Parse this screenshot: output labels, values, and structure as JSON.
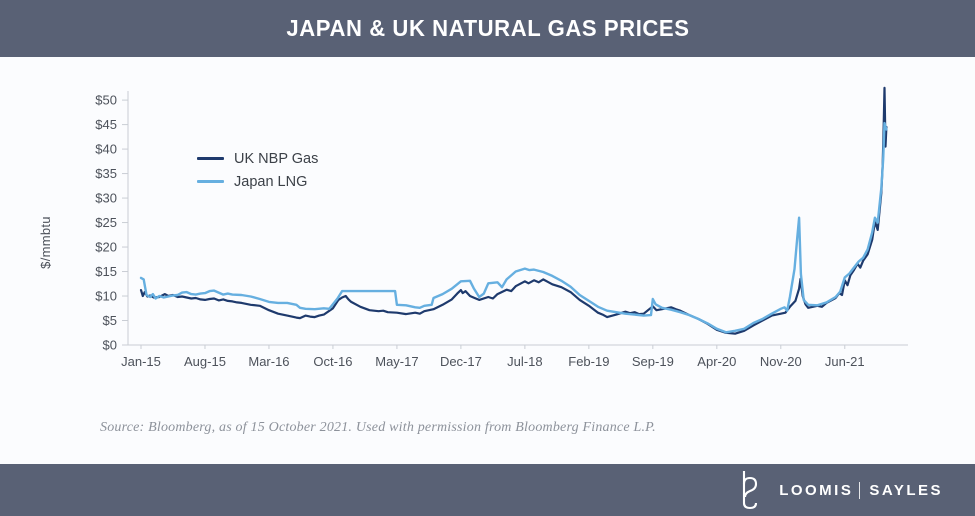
{
  "header": {
    "title": "JAPAN & UK NATURAL GAS PRICES"
  },
  "y_axis_label": "$/mmbtu",
  "source": {
    "text": "Source: Bloomberg, as of 15 October 2021. Used with permission from Bloomberg Finance L.P."
  },
  "footer": {
    "brand_left": "LOOMIS",
    "brand_right": "SAYLES",
    "logo": "loomis-sayles-ls-monogram"
  },
  "colors": {
    "bar_background": "#596175",
    "chart_background": "#fbfcfe",
    "axis_line": "#c9cdd4",
    "tick_text": "#4d525b",
    "legend_text": "#3c4148",
    "source_text": "#8d929b",
    "title_text": "#ffffff"
  },
  "chart_data": {
    "type": "line",
    "title": "JAPAN & UK NATURAL GAS PRICES",
    "xlabel": "",
    "ylabel": "$/mmbtu",
    "ylim": [
      0,
      52.5
    ],
    "grid": false,
    "legend_position": "inside-upper-left",
    "x_unit": "months since Jan-2015 (data through mid-Oct-2021)",
    "y_ticks": [
      {
        "v": 0,
        "label": "$0"
      },
      {
        "v": 5,
        "label": "$5"
      },
      {
        "v": 10,
        "label": "$10"
      },
      {
        "v": 15,
        "label": "$15"
      },
      {
        "v": 20,
        "label": "$20"
      },
      {
        "v": 25,
        "label": "$25"
      },
      {
        "v": 30,
        "label": "$30"
      },
      {
        "v": 35,
        "label": "$35"
      },
      {
        "v": 40,
        "label": "$40"
      },
      {
        "v": 45,
        "label": "$45"
      },
      {
        "v": 50,
        "label": "$50"
      }
    ],
    "x_ticks": [
      {
        "m": 0,
        "label": "Jan-15"
      },
      {
        "m": 7,
        "label": "Aug-15"
      },
      {
        "m": 14,
        "label": "Mar-16"
      },
      {
        "m": 21,
        "label": "Oct-16"
      },
      {
        "m": 28,
        "label": "May-17"
      },
      {
        "m": 35,
        "label": "Dec-17"
      },
      {
        "m": 42,
        "label": "Jul-18"
      },
      {
        "m": 49,
        "label": "Feb-19"
      },
      {
        "m": 56,
        "label": "Sep-19"
      },
      {
        "m": 63,
        "label": "Apr-20"
      },
      {
        "m": 70,
        "label": "Nov-20"
      },
      {
        "m": 77,
        "label": "Jun-21"
      }
    ],
    "series": [
      {
        "name": "UK NBP Gas",
        "color": "#1e3a6d",
        "points": [
          [
            0,
            11.2
          ],
          [
            0.2,
            10.0
          ],
          [
            0.4,
            10.8
          ],
          [
            0.7,
            9.9
          ],
          [
            1,
            10.1
          ],
          [
            1.4,
            9.7
          ],
          [
            2,
            9.8
          ],
          [
            2.6,
            10.4
          ],
          [
            3,
            10.0
          ],
          [
            3.5,
            10.2
          ],
          [
            4,
            9.8
          ],
          [
            4.5,
            9.9
          ],
          [
            5,
            9.7
          ],
          [
            5.5,
            9.5
          ],
          [
            6,
            9.6
          ],
          [
            6.5,
            9.3
          ],
          [
            7,
            9.2
          ],
          [
            7.5,
            9.4
          ],
          [
            8,
            9.5
          ],
          [
            8.5,
            9.1
          ],
          [
            9,
            9.3
          ],
          [
            9.5,
            9.0
          ],
          [
            10,
            8.9
          ],
          [
            10.5,
            8.7
          ],
          [
            11,
            8.6
          ],
          [
            12,
            8.2
          ],
          [
            13,
            8.0
          ],
          [
            14,
            7.1
          ],
          [
            15,
            6.4
          ],
          [
            16,
            6.0
          ],
          [
            16.5,
            5.8
          ],
          [
            17,
            5.6
          ],
          [
            17.4,
            5.5
          ],
          [
            18,
            6.0
          ],
          [
            18.5,
            5.8
          ],
          [
            19,
            5.7
          ],
          [
            19.5,
            6.0
          ],
          [
            20,
            6.2
          ],
          [
            21,
            7.5
          ],
          [
            21.6,
            9.2
          ],
          [
            22,
            9.7
          ],
          [
            22.4,
            10.0
          ],
          [
            22.7,
            9.3
          ],
          [
            23,
            8.8
          ],
          [
            24,
            7.8
          ],
          [
            25,
            7.1
          ],
          [
            26,
            6.9
          ],
          [
            26.5,
            7.0
          ],
          [
            27,
            6.7
          ],
          [
            28,
            6.6
          ],
          [
            29,
            6.3
          ],
          [
            30,
            6.6
          ],
          [
            30.5,
            6.4
          ],
          [
            31,
            6.9
          ],
          [
            32,
            7.3
          ],
          [
            33,
            8.2
          ],
          [
            34,
            9.3
          ],
          [
            34.6,
            10.5
          ],
          [
            35,
            11.2
          ],
          [
            35.2,
            10.6
          ],
          [
            35.5,
            11.0
          ],
          [
            36,
            10.0
          ],
          [
            36.5,
            9.6
          ],
          [
            37,
            9.2
          ],
          [
            38,
            9.8
          ],
          [
            38.5,
            9.5
          ],
          [
            39,
            10.4
          ],
          [
            40,
            11.3
          ],
          [
            40.5,
            11.0
          ],
          [
            41,
            12.0
          ],
          [
            42,
            13.0
          ],
          [
            42.4,
            12.6
          ],
          [
            43,
            13.2
          ],
          [
            43.5,
            12.8
          ],
          [
            44,
            13.4
          ],
          [
            44.5,
            12.9
          ],
          [
            45,
            12.4
          ],
          [
            46,
            11.8
          ],
          [
            47,
            10.8
          ],
          [
            48,
            9.2
          ],
          [
            49,
            8.0
          ],
          [
            50,
            6.6
          ],
          [
            50.5,
            6.2
          ],
          [
            51,
            5.7
          ],
          [
            52,
            6.2
          ],
          [
            53,
            6.8
          ],
          [
            53.5,
            6.5
          ],
          [
            54,
            6.7
          ],
          [
            54.5,
            6.3
          ],
          [
            55,
            6.4
          ],
          [
            56,
            7.9
          ],
          [
            56.4,
            7.1
          ],
          [
            57,
            7.3
          ],
          [
            58,
            7.7
          ],
          [
            58.5,
            7.3
          ],
          [
            59,
            7.0
          ],
          [
            60,
            6.1
          ],
          [
            61,
            5.3
          ],
          [
            62,
            4.3
          ],
          [
            63,
            3.1
          ],
          [
            64,
            2.5
          ],
          [
            65,
            2.3
          ],
          [
            66,
            2.9
          ],
          [
            67,
            4.0
          ],
          [
            68,
            5.0
          ],
          [
            69,
            6.0
          ],
          [
            70,
            6.4
          ],
          [
            70.5,
            6.6
          ],
          [
            71,
            7.8
          ],
          [
            71.6,
            9.0
          ],
          [
            72,
            11.5
          ],
          [
            72.15,
            13.5
          ],
          [
            72.4,
            10.0
          ],
          [
            72.7,
            8.3
          ],
          [
            73,
            7.6
          ],
          [
            74,
            8.0
          ],
          [
            74.5,
            7.8
          ],
          [
            75,
            8.6
          ],
          [
            76,
            9.6
          ],
          [
            76.4,
            10.6
          ],
          [
            76.7,
            10.2
          ],
          [
            77,
            13.2
          ],
          [
            77.3,
            12.2
          ],
          [
            77.6,
            14.2
          ],
          [
            78,
            15.3
          ],
          [
            78.4,
            16.6
          ],
          [
            78.7,
            15.8
          ],
          [
            79,
            17.2
          ],
          [
            79.5,
            18.5
          ],
          [
            80,
            21.5
          ],
          [
            80.3,
            25.2
          ],
          [
            80.6,
            23.5
          ],
          [
            81,
            31.0
          ],
          [
            81.15,
            37.0
          ],
          [
            81.25,
            44.0
          ],
          [
            81.35,
            52.5
          ],
          [
            81.45,
            40.5
          ],
          [
            81.55,
            44.5
          ]
        ]
      },
      {
        "name": "Japan LNG",
        "color": "#66afe0",
        "points": [
          [
            0,
            13.7
          ],
          [
            0.3,
            13.4
          ],
          [
            0.6,
            10.2
          ],
          [
            1,
            9.8
          ],
          [
            1.3,
            10.4
          ],
          [
            1.6,
            9.5
          ],
          [
            2,
            10.0
          ],
          [
            2.5,
            9.7
          ],
          [
            3,
            9.9
          ],
          [
            3.5,
            10.1
          ],
          [
            4,
            10.2
          ],
          [
            4.5,
            10.7
          ],
          [
            5,
            10.8
          ],
          [
            5.5,
            10.4
          ],
          [
            6,
            10.3
          ],
          [
            6.5,
            10.5
          ],
          [
            7,
            10.6
          ],
          [
            7.5,
            11.0
          ],
          [
            8,
            11.1
          ],
          [
            8.5,
            10.7
          ],
          [
            9,
            10.3
          ],
          [
            9.5,
            10.5
          ],
          [
            10,
            10.3
          ],
          [
            11,
            10.2
          ],
          [
            12,
            9.9
          ],
          [
            13,
            9.4
          ],
          [
            14,
            8.8
          ],
          [
            15,
            8.6
          ],
          [
            16,
            8.6
          ],
          [
            17,
            8.2
          ],
          [
            17.4,
            7.6
          ],
          [
            18,
            7.4
          ],
          [
            19,
            7.3
          ],
          [
            20,
            7.5
          ],
          [
            20.6,
            7.4
          ],
          [
            21,
            8.3
          ],
          [
            21.5,
            9.5
          ],
          [
            22,
            11.0
          ],
          [
            23,
            11.0
          ],
          [
            24,
            11.0
          ],
          [
            25,
            11.0
          ],
          [
            26,
            11.0
          ],
          [
            27,
            11.0
          ],
          [
            27.8,
            11.0
          ],
          [
            28,
            8.2
          ],
          [
            29,
            8.1
          ],
          [
            30,
            7.7
          ],
          [
            30.5,
            7.6
          ],
          [
            31,
            8.0
          ],
          [
            31.8,
            8.2
          ],
          [
            32,
            9.6
          ],
          [
            33,
            10.4
          ],
          [
            34,
            11.5
          ],
          [
            35,
            13.0
          ],
          [
            36,
            13.1
          ],
          [
            36.4,
            11.6
          ],
          [
            37,
            9.8
          ],
          [
            37.5,
            10.5
          ],
          [
            38,
            12.6
          ],
          [
            39,
            12.8
          ],
          [
            39.5,
            11.8
          ],
          [
            40,
            13.4
          ],
          [
            41,
            15.0
          ],
          [
            42,
            15.6
          ],
          [
            42.5,
            15.3
          ],
          [
            43,
            15.4
          ],
          [
            44,
            14.9
          ],
          [
            45,
            14.1
          ],
          [
            46,
            13.1
          ],
          [
            47,
            11.9
          ],
          [
            48,
            10.2
          ],
          [
            49,
            9.0
          ],
          [
            50,
            7.8
          ],
          [
            51,
            7.0
          ],
          [
            52,
            6.7
          ],
          [
            53,
            6.4
          ],
          [
            54,
            6.2
          ],
          [
            55,
            6.0
          ],
          [
            55.8,
            6.1
          ],
          [
            56,
            9.4
          ],
          [
            56.3,
            8.3
          ],
          [
            57,
            7.6
          ],
          [
            58,
            7.2
          ],
          [
            59,
            6.7
          ],
          [
            60,
            6.1
          ],
          [
            61,
            5.3
          ],
          [
            62,
            4.4
          ],
          [
            63,
            3.3
          ],
          [
            64,
            2.6
          ],
          [
            65,
            2.9
          ],
          [
            66,
            3.3
          ],
          [
            67,
            4.5
          ],
          [
            68,
            5.3
          ],
          [
            69,
            6.4
          ],
          [
            70,
            7.4
          ],
          [
            70.4,
            7.7
          ],
          [
            70.7,
            7.0
          ],
          [
            71,
            9.8
          ],
          [
            71.5,
            15.5
          ],
          [
            71.8,
            22.0
          ],
          [
            72,
            26.0
          ],
          [
            72.2,
            14.5
          ],
          [
            72.5,
            9.2
          ],
          [
            73,
            8.2
          ],
          [
            74,
            8.1
          ],
          [
            75,
            8.7
          ],
          [
            76,
            9.8
          ],
          [
            76.5,
            10.9
          ],
          [
            77,
            13.8
          ],
          [
            77.5,
            14.6
          ],
          [
            78,
            15.8
          ],
          [
            78.5,
            17.0
          ],
          [
            79,
            17.8
          ],
          [
            79.5,
            19.5
          ],
          [
            80,
            23.0
          ],
          [
            80.3,
            26.0
          ],
          [
            80.6,
            25.0
          ],
          [
            81,
            32.0
          ],
          [
            81.2,
            38.0
          ],
          [
            81.35,
            45.3
          ],
          [
            81.55,
            44.0
          ]
        ]
      }
    ]
  }
}
